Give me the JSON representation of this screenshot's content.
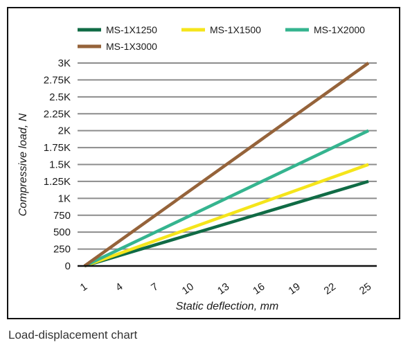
{
  "caption": "Load-displacement chart",
  "chart_data": {
    "type": "line",
    "title": "",
    "xlabel": "Static deflection, mm",
    "ylabel": "Compressive load, N",
    "x_ticks": [
      1,
      4,
      7,
      10,
      13,
      16,
      19,
      22,
      25
    ],
    "y_ticks": [
      {
        "value": 0,
        "label": "0"
      },
      {
        "value": 250,
        "label": "250"
      },
      {
        "value": 500,
        "label": "500"
      },
      {
        "value": 750,
        "label": "750"
      },
      {
        "value": 1000,
        "label": "1K"
      },
      {
        "value": 1250,
        "label": "1.25K"
      },
      {
        "value": 1500,
        "label": "1.5K"
      },
      {
        "value": 1750,
        "label": "1.75K"
      },
      {
        "value": 2000,
        "label": "2K"
      },
      {
        "value": 2250,
        "label": "2.25K"
      },
      {
        "value": 2500,
        "label": "2.5K"
      },
      {
        "value": 2750,
        "label": "2.75K"
      },
      {
        "value": 3000,
        "label": "3K"
      }
    ],
    "xlim": [
      1,
      25
    ],
    "ylim": [
      0,
      3000
    ],
    "grid": "horizontal",
    "legend_position": "top",
    "series": [
      {
        "name": "MS-1X1250",
        "color": "#106b45",
        "x": [
          1,
          25
        ],
        "y": [
          0,
          1250
        ]
      },
      {
        "name": "MS-1X1500",
        "color": "#f5e51b",
        "x": [
          1,
          25
        ],
        "y": [
          0,
          1500
        ]
      },
      {
        "name": "MS-1X2000",
        "color": "#35b48f",
        "x": [
          1,
          25
        ],
        "y": [
          0,
          2000
        ]
      },
      {
        "name": "MS-1X3000",
        "color": "#95633a",
        "x": [
          1,
          25
        ],
        "y": [
          0,
          3000
        ]
      }
    ]
  }
}
